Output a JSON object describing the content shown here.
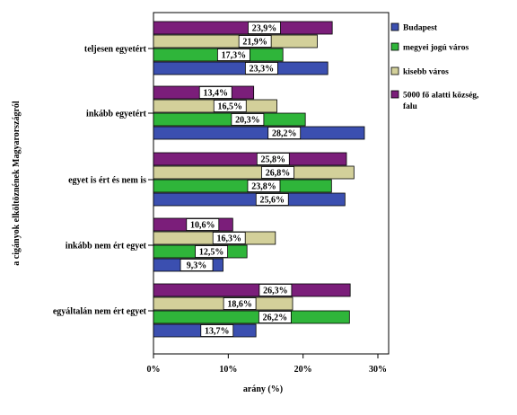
{
  "chart_data": {
    "type": "bar",
    "orientation": "horizontal",
    "xlabel": "arány (%)",
    "ylabel": "a cigányok elköltöznének Magyarországról",
    "xlim": [
      0,
      30
    ],
    "xticks": [
      "0%",
      "10%",
      "20%",
      "30%"
    ],
    "grid": false,
    "legend_position": "right",
    "categories": [
      "teljesen egyetért",
      "inkább egyetért",
      "egyet is ért és nem is",
      "inkább nem ért egyet",
      "egyáltalán nem ért egyet"
    ],
    "series": [
      {
        "name": "Budapest",
        "color": "#3b4fb0",
        "values": [
          23.3,
          28.2,
          25.6,
          9.3,
          13.7
        ],
        "labels": [
          "23,3%",
          "28,2%",
          "25,6%",
          "9,3%",
          "13,7%"
        ]
      },
      {
        "name": "megyei jogú város",
        "color": "#2fb53a",
        "values": [
          17.3,
          20.3,
          23.8,
          12.5,
          26.2
        ],
        "labels": [
          "17,3%",
          "20,3%",
          "23,8%",
          "12,5%",
          "26,2%"
        ]
      },
      {
        "name": "kisebb város",
        "color": "#d3d09a",
        "values": [
          21.9,
          16.5,
          26.8,
          16.3,
          18.6
        ],
        "labels": [
          "21,9%",
          "16,5%",
          "26,8%",
          "16,3%",
          "18,6%"
        ]
      },
      {
        "name": "5000 fő alatti község, falu",
        "color": "#7b1e7a",
        "values": [
          23.9,
          13.4,
          25.8,
          10.6,
          26.3
        ],
        "labels": [
          "23,9%",
          "13,4%",
          "25,8%",
          "10,6%",
          "26,3%"
        ]
      }
    ]
  }
}
